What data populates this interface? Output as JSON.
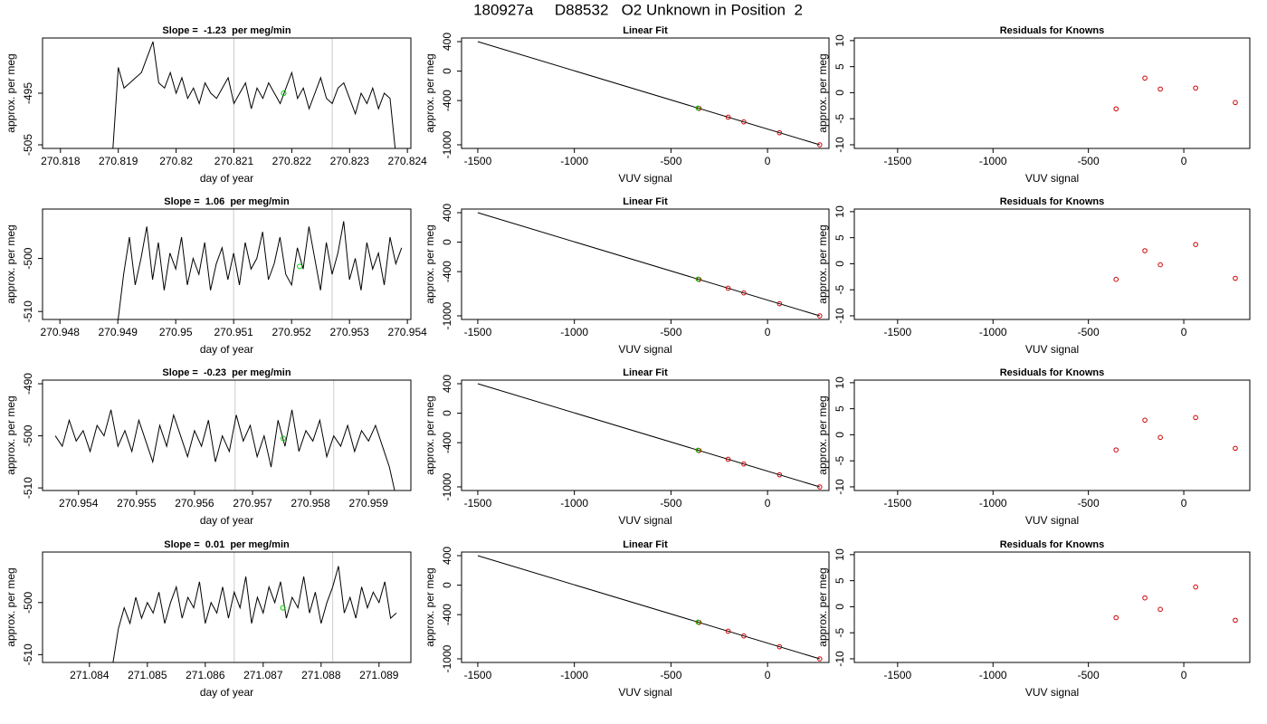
{
  "title": "180927a     D88532   O2 Unknown in Position  2",
  "chart_data": [
    {
      "type": "line",
      "title": "Slope =  -1.23  per meg/min",
      "xlabel": "day of year",
      "ylabel": "approx. per meg",
      "xlim": [
        270.81769,
        270.82406
      ],
      "ylim": [
        -505.7,
        -484.3
      ],
      "xticks": [
        270.818,
        270.819,
        270.82,
        270.821,
        270.822,
        270.823,
        270.824
      ],
      "yticks": [
        -505,
        -495
      ],
      "x": [
        270.8189,
        270.819,
        270.8191,
        270.8192,
        270.8193,
        270.8194,
        270.8195,
        270.8196,
        270.8197,
        270.8198,
        270.8199,
        270.82,
        270.8201,
        270.8202,
        270.8203,
        270.8204,
        270.8205,
        270.8206,
        270.8207,
        270.8208,
        270.8209,
        270.821,
        270.8211,
        270.8212,
        270.8213,
        270.8214,
        270.8215,
        270.8216,
        270.8217,
        270.8218,
        270.8219,
        270.822,
        270.8221,
        270.8222,
        270.8223,
        270.8224,
        270.8225,
        270.8226,
        270.8227,
        270.8228,
        270.8229,
        270.823,
        270.8231,
        270.8232,
        270.8233,
        270.8234,
        270.8235,
        270.8236,
        270.8237,
        270.8238
      ],
      "series": [
        {
          "color": "#000000",
          "values": [
            -507,
            -490,
            -494,
            -493,
            -492,
            -491,
            -488,
            -485,
            -493,
            -494,
            -491,
            -495,
            -492,
            -496,
            -494,
            -497,
            -493,
            -495,
            -496,
            -494,
            -492,
            -497,
            -495,
            -493,
            -498,
            -494,
            -496,
            -493,
            -495,
            -497,
            -494,
            -491,
            -496,
            -494,
            -498,
            -495,
            -492,
            -496,
            -497,
            -494,
            -493,
            -496,
            -499,
            -495,
            -497,
            -494,
            -498,
            -495,
            -496,
            -507
          ]
        }
      ],
      "vlines": [
        270.821,
        270.8227
      ],
      "vline_color": "#cccccc",
      "marker": {
        "x": 270.82186,
        "y": -495,
        "color": "#00cc00"
      }
    },
    {
      "type": "scatter",
      "title": "Linear Fit",
      "xlabel": "VUV signal",
      "ylabel": "approx. per meg",
      "xlim": [
        -1584,
        318
      ],
      "ylim": [
        -1049,
        449
      ],
      "xticks": [
        -1500,
        -1000,
        -500,
        0
      ],
      "yticks": [
        -1000,
        -400,
        0,
        400
      ],
      "fit": {
        "x": [
          -1500,
          270
        ],
        "values": [
          400,
          -1000
        ],
        "color": "#000000"
      },
      "series": [
        {
          "color": "#cc0000",
          "x": [
            -355,
            -204,
            -123,
            62,
            270
          ],
          "values": [
            -506,
            -625,
            -689,
            -836,
            -1000
          ]
        },
        {
          "color": "#00cc00",
          "x": [
            -360
          ],
          "values": [
            -502
          ]
        }
      ]
    },
    {
      "type": "scatter",
      "title": "Residuals for Knowns",
      "xlabel": "VUV signal",
      "ylabel": "approx. per meg",
      "xlim": [
        -1727,
        346
      ],
      "ylim": [
        -10.7,
        10.5
      ],
      "xticks": [
        -1500,
        -1000,
        -500,
        0
      ],
      "yticks": [
        -10,
        -5,
        0,
        5,
        10
      ],
      "series": [
        {
          "color": "#cc0000",
          "x": [
            -355,
            -204,
            -123,
            62,
            270
          ],
          "values": [
            -3.1,
            2.8,
            0.7,
            0.9,
            -1.9
          ]
        }
      ]
    },
    {
      "type": "line",
      "title": "Slope =  1.06  per meg/min",
      "xlabel": "day of year",
      "ylabel": "approx. per meg",
      "xlim": [
        270.9477,
        270.95406
      ],
      "ylim": [
        -511.5,
        -490.7
      ],
      "xticks": [
        270.948,
        270.949,
        270.95,
        270.951,
        270.952,
        270.953,
        270.954
      ],
      "yticks": [
        -510,
        -500
      ],
      "x": [
        270.949,
        270.9491,
        270.9492,
        270.9493,
        270.9494,
        270.9495,
        270.9496,
        270.9497,
        270.9498,
        270.9499,
        270.95,
        270.9501,
        270.9502,
        270.9503,
        270.9504,
        270.9505,
        270.9506,
        270.9507,
        270.9508,
        270.9509,
        270.951,
        270.9511,
        270.9512,
        270.9513,
        270.9514,
        270.9515,
        270.9516,
        270.9517,
        270.9518,
        270.9519,
        270.952,
        270.9521,
        270.9522,
        270.9523,
        270.9524,
        270.9525,
        270.9526,
        270.9527,
        270.9528,
        270.9529,
        270.953,
        270.9531,
        270.9532,
        270.9533,
        270.9534,
        270.9535,
        270.9536,
        270.9537,
        270.9538,
        270.9539
      ],
      "series": [
        {
          "color": "#000000",
          "values": [
            -512,
            -503,
            -496,
            -505,
            -500,
            -494,
            -504,
            -497,
            -506,
            -499,
            -502,
            -496,
            -505,
            -500,
            -503,
            -497,
            -506,
            -501,
            -498,
            -504,
            -499,
            -505,
            -497,
            -502,
            -500,
            -495,
            -504,
            -501,
            -496,
            -503,
            -505,
            -498,
            -502,
            -494,
            -500,
            -506,
            -497,
            -503,
            -499,
            -493,
            -504,
            -500,
            -506,
            -497,
            -502,
            -499,
            -505,
            -496,
            -501,
            -498
          ]
        }
      ],
      "vlines": [
        270.951,
        270.9527
      ],
      "vline_color": "#cccccc",
      "marker": {
        "x": 270.95214,
        "y": -501.5,
        "color": "#00cc00"
      }
    },
    {
      "type": "scatter",
      "title": "Linear Fit",
      "xlabel": "VUV signal",
      "ylabel": "approx. per meg",
      "xlim": [
        -1584,
        318
      ],
      "ylim": [
        -1049,
        449
      ],
      "xticks": [
        -1500,
        -1000,
        -500,
        0
      ],
      "yticks": [
        -1000,
        -400,
        0,
        400
      ],
      "fit": {
        "x": [
          -1500,
          270
        ],
        "values": [
          400,
          -1000
        ],
        "color": "#000000"
      },
      "series": [
        {
          "color": "#cc0000",
          "x": [
            -355,
            -204,
            -123,
            62,
            270
          ],
          "values": [
            -506,
            -625,
            -689,
            -836,
            -1000
          ]
        },
        {
          "color": "#00cc00",
          "x": [
            -360
          ],
          "values": [
            -502
          ]
        }
      ]
    },
    {
      "type": "scatter",
      "title": "Residuals for Knowns",
      "xlabel": "VUV signal",
      "ylabel": "approx. per meg",
      "xlim": [
        -1727,
        346
      ],
      "ylim": [
        -10.7,
        10.5
      ],
      "xticks": [
        -1500,
        -1000,
        -500,
        0
      ],
      "yticks": [
        -10,
        -5,
        0,
        5,
        10
      ],
      "series": [
        {
          "color": "#cc0000",
          "x": [
            -355,
            -204,
            -123,
            62,
            270
          ],
          "values": [
            -3.0,
            2.5,
            -0.2,
            3.7,
            -2.8
          ]
        }
      ]
    },
    {
      "type": "line",
      "title": "Slope =  -0.23  per meg/min",
      "xlabel": "day of year",
      "ylabel": "approx. per meg",
      "xlim": [
        270.95338,
        270.95973
      ],
      "ylim": [
        -510.5,
        -489.3
      ],
      "xticks": [
        270.954,
        270.955,
        270.956,
        270.957,
        270.958,
        270.959
      ],
      "yticks": [
        -510,
        -500,
        -490
      ],
      "x": [
        270.9536,
        270.95372,
        270.95384,
        270.95396,
        270.95408,
        270.9542,
        270.95432,
        270.95444,
        270.95456,
        270.95468,
        270.9548,
        270.95492,
        270.95504,
        270.95516,
        270.95528,
        270.9554,
        270.95552,
        270.95564,
        270.95576,
        270.95588,
        270.956,
        270.95612,
        270.95624,
        270.95636,
        270.95648,
        270.9566,
        270.95672,
        270.95684,
        270.95696,
        270.95708,
        270.9572,
        270.95732,
        270.95744,
        270.95756,
        270.95768,
        270.9578,
        270.95792,
        270.95804,
        270.95816,
        270.95828,
        270.9584,
        270.95852,
        270.95864,
        270.95876,
        270.95888,
        270.959,
        270.95912,
        270.95924,
        270.95936,
        270.95948
      ],
      "series": [
        {
          "color": "#000000",
          "values": [
            -500,
            -502,
            -497,
            -501,
            -499,
            -503,
            -498,
            -500,
            -495,
            -502,
            -499,
            -503,
            -497,
            -501,
            -505,
            -498,
            -502,
            -496,
            -500,
            -504,
            -499,
            -502,
            -497,
            -505,
            -500,
            -503,
            -496,
            -501,
            -498,
            -504,
            -500,
            -506,
            -497,
            -502,
            -495,
            -503,
            -499,
            -501,
            -497,
            -504,
            -500,
            -502,
            -498,
            -503,
            -499,
            -501,
            -498,
            -502,
            -506,
            -512
          ]
        }
      ],
      "vlines": [
        270.9567,
        270.9584
      ],
      "vline_color": "#cccccc",
      "marker": {
        "x": 270.95753,
        "y": -500.5,
        "color": "#00cc00"
      }
    },
    {
      "type": "scatter",
      "title": "Linear Fit",
      "xlabel": "VUV signal",
      "ylabel": "approx. per meg",
      "xlim": [
        -1584,
        318
      ],
      "ylim": [
        -1049,
        449
      ],
      "xticks": [
        -1500,
        -1000,
        -500,
        0
      ],
      "yticks": [
        -1000,
        -400,
        0,
        400
      ],
      "fit": {
        "x": [
          -1500,
          270
        ],
        "values": [
          400,
          -1000
        ],
        "color": "#000000"
      },
      "series": [
        {
          "color": "#cc0000",
          "x": [
            -355,
            -204,
            -123,
            62,
            270
          ],
          "values": [
            -506,
            -625,
            -689,
            -836,
            -1000
          ]
        },
        {
          "color": "#00cc00",
          "x": [
            -360
          ],
          "values": [
            -502
          ]
        }
      ]
    },
    {
      "type": "scatter",
      "title": "Residuals for Knowns",
      "xlabel": "VUV signal",
      "ylabel": "approx. per meg",
      "xlim": [
        -1727,
        346
      ],
      "ylim": [
        -10.7,
        10.5
      ],
      "xticks": [
        -1500,
        -1000,
        -500,
        0
      ],
      "yticks": [
        -10,
        -5,
        0,
        5,
        10
      ],
      "series": [
        {
          "color": "#cc0000",
          "x": [
            -355,
            -204,
            -123,
            62,
            270
          ],
          "values": [
            -2.9,
            2.8,
            -0.5,
            3.3,
            -2.6
          ]
        }
      ]
    },
    {
      "type": "line",
      "title": "Slope =  0.01  per meg/min",
      "xlabel": "day of year",
      "ylabel": "approx. per meg",
      "xlim": [
        271.08319,
        271.08955
      ],
      "ylim": [
        -511.5,
        -490.3
      ],
      "xticks": [
        271.084,
        271.085,
        271.086,
        271.087,
        271.088,
        271.089
      ],
      "yticks": [
        -510,
        -500
      ],
      "x": [
        271.0844,
        271.0845,
        271.0846,
        271.0847,
        271.0848,
        271.0849,
        271.085,
        271.0851,
        271.0852,
        271.0853,
        271.0854,
        271.0855,
        271.0856,
        271.0857,
        271.0858,
        271.0859,
        271.086,
        271.0861,
        271.0862,
        271.0863,
        271.0864,
        271.0865,
        271.0866,
        271.0867,
        271.0868,
        271.0869,
        271.087,
        271.0871,
        271.0872,
        271.0873,
        271.0874,
        271.0875,
        271.0876,
        271.0877,
        271.0878,
        271.0879,
        271.088,
        271.0881,
        271.0882,
        271.0883,
        271.0884,
        271.0885,
        271.0886,
        271.0887,
        271.0888,
        271.0889,
        271.089,
        271.0891,
        271.0892,
        271.0893
      ],
      "series": [
        {
          "color": "#000000",
          "values": [
            -512,
            -505,
            -501,
            -504,
            -499,
            -503,
            -500,
            -502,
            -498,
            -504,
            -500,
            -497,
            -503,
            -499,
            -501,
            -496,
            -504,
            -500,
            -502,
            -497,
            -503,
            -498,
            -501,
            -495,
            -504,
            -499,
            -502,
            -497,
            -500,
            -496,
            -503,
            -499,
            -501,
            -495,
            -502,
            -498,
            -504,
            -500,
            -497,
            -493,
            -502,
            -499,
            -503,
            -497,
            -501,
            -498,
            -500,
            -496,
            -503,
            -502
          ]
        }
      ],
      "vlines": [
        271.0865,
        271.0882
      ],
      "vline_color": "#cccccc",
      "marker": {
        "x": 271.08734,
        "y": -501,
        "color": "#00cc00"
      }
    },
    {
      "type": "scatter",
      "title": "Linear Fit",
      "xlabel": "VUV signal",
      "ylabel": "approx. per meg",
      "xlim": [
        -1584,
        318
      ],
      "ylim": [
        -1049,
        449
      ],
      "xticks": [
        -1500,
        -1000,
        -500,
        0
      ],
      "yticks": [
        -1000,
        -400,
        0,
        400
      ],
      "fit": {
        "x": [
          -1500,
          270
        ],
        "values": [
          400,
          -1000
        ],
        "color": "#000000"
      },
      "series": [
        {
          "color": "#cc0000",
          "x": [
            -355,
            -204,
            -123,
            62,
            270
          ],
          "values": [
            -506,
            -625,
            -689,
            -836,
            -1000
          ]
        },
        {
          "color": "#00cc00",
          "x": [
            -360
          ],
          "values": [
            -502
          ]
        }
      ]
    },
    {
      "type": "scatter",
      "title": "Residuals for Knowns",
      "xlabel": "VUV signal",
      "ylabel": "approx. per meg",
      "xlim": [
        -1727,
        346
      ],
      "ylim": [
        -10.7,
        10.5
      ],
      "xticks": [
        -1500,
        -1000,
        -500,
        0
      ],
      "yticks": [
        -10,
        -5,
        0,
        5,
        10
      ],
      "series": [
        {
          "color": "#cc0000",
          "x": [
            -355,
            -204,
            -123,
            62,
            270
          ],
          "values": [
            -2.1,
            1.7,
            -0.5,
            3.8,
            -2.6
          ]
        }
      ]
    }
  ]
}
